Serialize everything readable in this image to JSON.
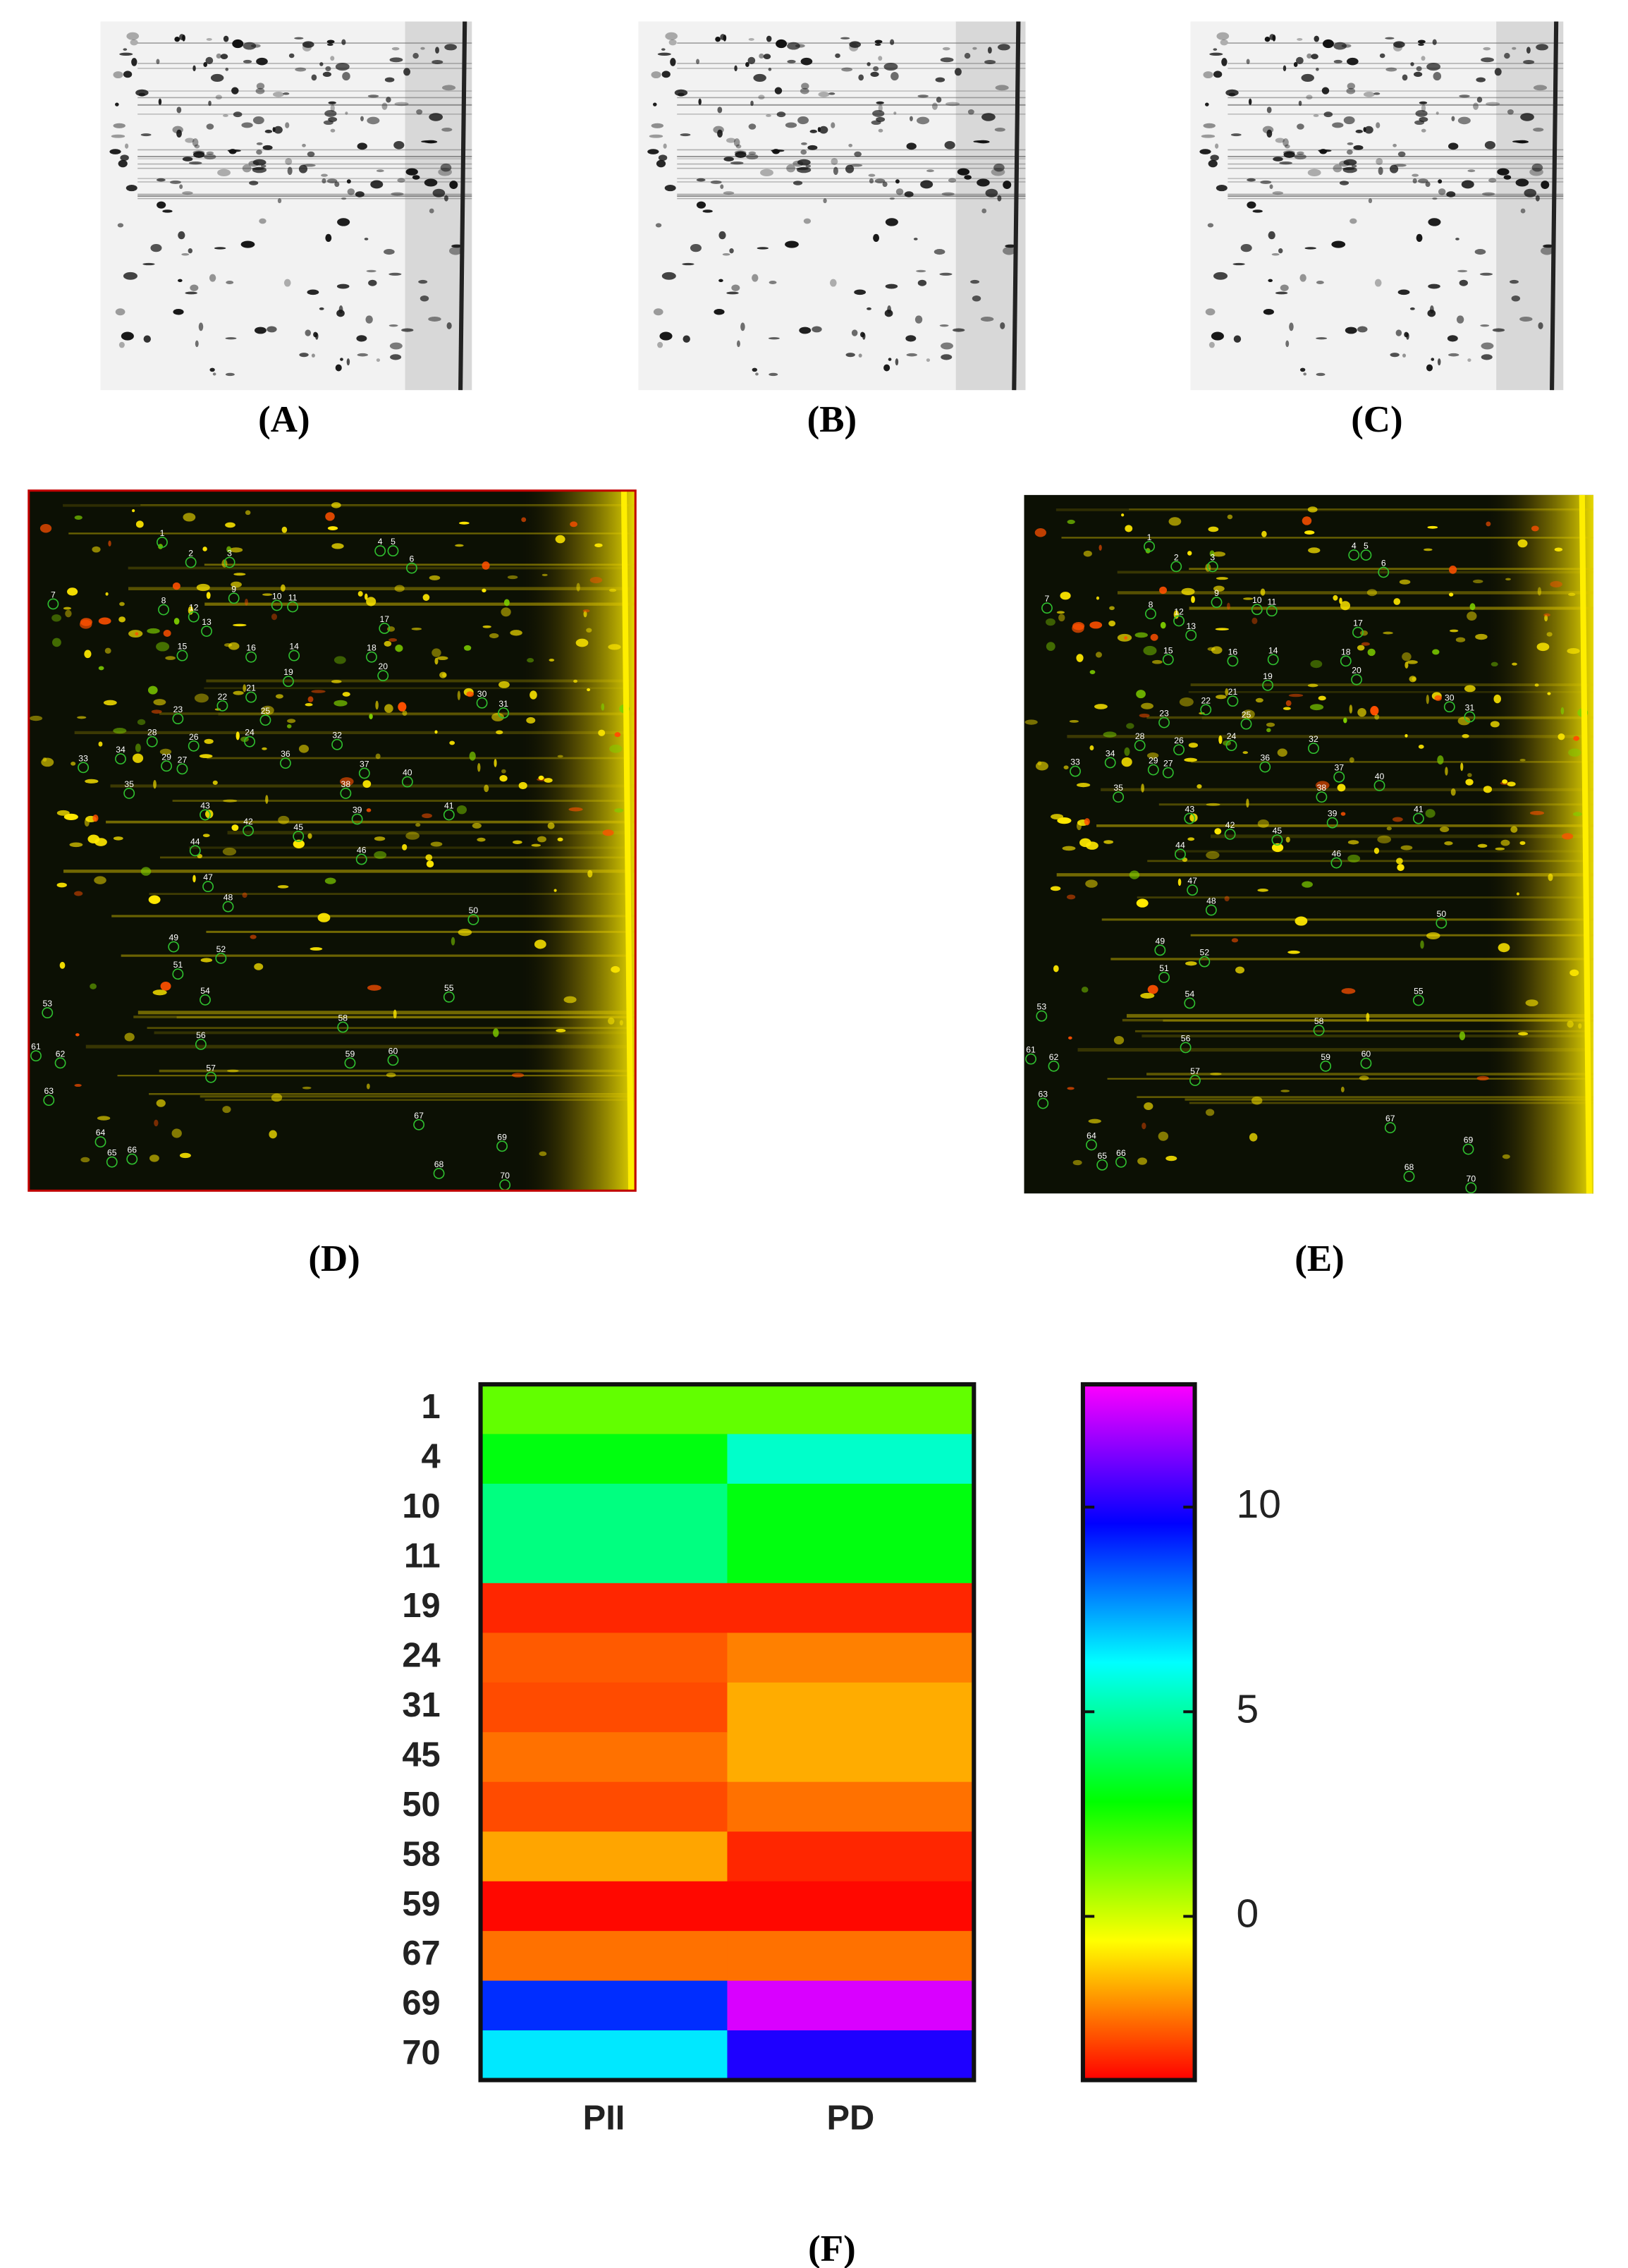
{
  "panel_labels": [
    "(A)",
    "(B)",
    "(C)",
    "(D)",
    "(E)",
    "(F)"
  ],
  "spots": [
    "1",
    "2",
    "3",
    "4",
    "5",
    "6",
    "7",
    "8",
    "9",
    "10",
    "11",
    "12",
    "13",
    "14",
    "15",
    "16",
    "17",
    "18",
    "19",
    "20",
    "21",
    "22",
    "23",
    "24",
    "25",
    "26",
    "27",
    "28",
    "29",
    "30",
    "31",
    "32",
    "33",
    "34",
    "35",
    "36",
    "37",
    "38",
    "39",
    "40",
    "41",
    "42",
    "43",
    "44",
    "45",
    "46",
    "47",
    "48",
    "49",
    "50",
    "51",
    "52",
    "53",
    "54",
    "55",
    "56",
    "57",
    "58",
    "59",
    "60",
    "61",
    "62",
    "63",
    "64",
    "65",
    "66",
    "67",
    "68",
    "69",
    "70"
  ],
  "chart_data": {
    "type": "heatmap",
    "rows": [
      "1",
      "4",
      "10",
      "11",
      "19",
      "24",
      "31",
      "45",
      "50",
      "58",
      "59",
      "67",
      "69",
      "70"
    ],
    "columns": [
      "PII",
      "PD"
    ],
    "values": [
      [
        1.5,
        1.5
      ],
      [
        3,
        5.5
      ],
      [
        4.5,
        3
      ],
      [
        4.5,
        3
      ],
      [
        -3.5,
        -3.5
      ],
      [
        -2.8,
        -2.3
      ],
      [
        -3,
        -1.7
      ],
      [
        -2.5,
        -1.7
      ],
      [
        -3,
        -2.5
      ],
      [
        -1.8,
        -3.5
      ],
      [
        -3.9,
        -3.9
      ],
      [
        -2.5,
        -2.5
      ],
      [
        9,
        12.5
      ],
      [
        6.5,
        10
      ]
    ],
    "zlim": [
      -4,
      13
    ],
    "zticks": [
      0,
      5,
      10
    ],
    "colormap": [
      "#ff0000",
      "#ffff00",
      "#00ff00",
      "#00ffff",
      "#0000ff",
      "#ff00ff"
    ]
  }
}
